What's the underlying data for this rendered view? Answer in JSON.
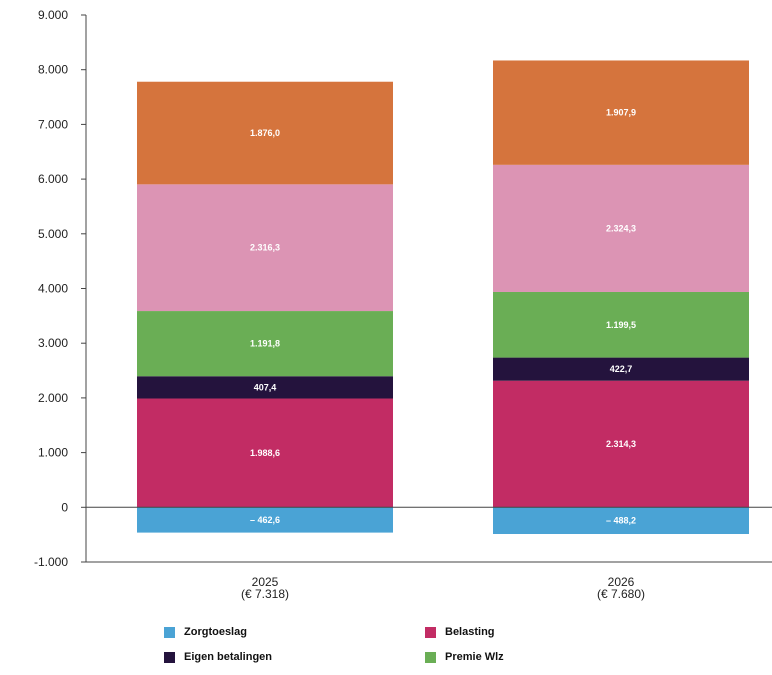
{
  "chart_data": {
    "type": "bar",
    "stacked": true,
    "categories": [
      "2025",
      "2026"
    ],
    "category_sublabels": [
      "(€ 7.318)",
      "(€ 7.680)"
    ],
    "ylim": [
      -1000,
      9000
    ],
    "yticks": [
      -1000,
      0,
      1000,
      2000,
      3000,
      4000,
      5000,
      6000,
      7000,
      8000,
      9000
    ],
    "ytick_labels": [
      "-1.000",
      "0",
      "1.000",
      "2.000",
      "3.000",
      "4.000",
      "5.000",
      "6.000",
      "7.000",
      "8.000",
      "9.000"
    ],
    "series": [
      {
        "name": "Zorgtoeslag",
        "color": "#4aa3d5",
        "values": [
          -462.6,
          -488.2
        ],
        "labels": [
          "– 462,6",
          "– 488,2"
        ]
      },
      {
        "name": "Belasting",
        "color": "#c22c64",
        "values": [
          1988.6,
          2314.3
        ],
        "labels": [
          "1.988,6",
          "2.314,3"
        ]
      },
      {
        "name": "Eigen betalingen",
        "color": "#24133d",
        "values": [
          407.4,
          422.7
        ],
        "labels": [
          "407,4",
          "422,7"
        ]
      },
      {
        "name": "Premie Wlz",
        "color": "#6aae55",
        "values": [
          1191.8,
          1199.5
        ],
        "labels": [
          "1.191,8",
          "1.199,5"
        ]
      },
      {
        "name": "",
        "color": "#dc94b4",
        "values": [
          2316.3,
          2324.3
        ],
        "labels": [
          "2.316,3",
          "2.324,3"
        ]
      },
      {
        "name": "",
        "color": "#d5743d",
        "values": [
          1876.0,
          1907.9
        ],
        "labels": [
          "1.876,0",
          "1.907,9"
        ]
      }
    ],
    "legend": [
      "Zorgtoeslag",
      "Belasting",
      "Eigen betalingen",
      "Premie Wlz"
    ]
  }
}
